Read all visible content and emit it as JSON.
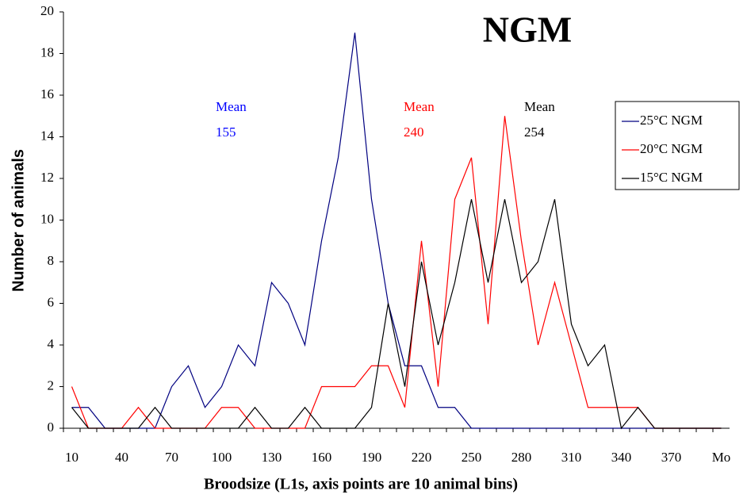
{
  "chart_data": {
    "type": "line",
    "title": "NGM",
    "xlabel": "Broodsize (L1s, axis points are 10 animal bins)",
    "ylabel": "Number of animals",
    "categories": [
      "10",
      null,
      null,
      "40",
      null,
      null,
      "70",
      null,
      null,
      "100",
      null,
      null,
      "130",
      null,
      null,
      "160",
      null,
      null,
      "190",
      null,
      null,
      "220",
      null,
      null,
      "250",
      null,
      null,
      "280",
      null,
      null,
      "310",
      null,
      null,
      "340",
      null,
      null,
      "370",
      null,
      null,
      "Mo"
    ],
    "series": [
      {
        "name": "25°C NGM",
        "color": "#000080",
        "values": [
          1,
          1,
          0,
          0,
          0,
          0,
          2,
          3,
          1,
          2,
          4,
          3,
          7,
          6,
          4,
          9,
          13,
          19,
          11,
          6,
          3,
          3,
          1,
          1,
          0,
          0,
          0,
          0,
          0,
          0,
          0,
          0,
          0,
          0,
          0,
          0,
          0,
          0,
          0,
          0
        ]
      },
      {
        "name": "20°C NGM",
        "color": "#ff0000",
        "values": [
          2,
          0,
          0,
          0,
          1,
          0,
          0,
          0,
          0,
          1,
          1,
          0,
          0,
          0,
          0,
          2,
          2,
          2,
          3,
          3,
          1,
          9,
          2,
          11,
          13,
          5,
          15,
          9,
          4,
          7,
          4,
          1,
          1,
          1,
          1,
          0,
          0,
          0,
          0,
          0
        ]
      },
      {
        "name": "15°C NGM",
        "color": "#000000",
        "values": [
          1,
          0,
          0,
          0,
          0,
          1,
          0,
          0,
          0,
          0,
          0,
          1,
          0,
          0,
          1,
          0,
          0,
          0,
          1,
          6,
          2,
          8,
          4,
          7,
          11,
          7,
          11,
          7,
          8,
          11,
          5,
          3,
          4,
          0,
          1,
          0,
          0,
          0,
          0,
          0
        ]
      }
    ],
    "annotations": [
      {
        "label": "Mean",
        "value": 155,
        "color": "#0000ff"
      },
      {
        "label": "Mean",
        "value": 240,
        "color": "#ff0000"
      },
      {
        "label": "Mean",
        "value": 254,
        "color": "#000000"
      }
    ],
    "ylim": [
      0,
      20
    ],
    "yticks": [
      0,
      2,
      4,
      6,
      8,
      10,
      12,
      14,
      16,
      18,
      20
    ],
    "legend": "top-right",
    "grid": false
  }
}
